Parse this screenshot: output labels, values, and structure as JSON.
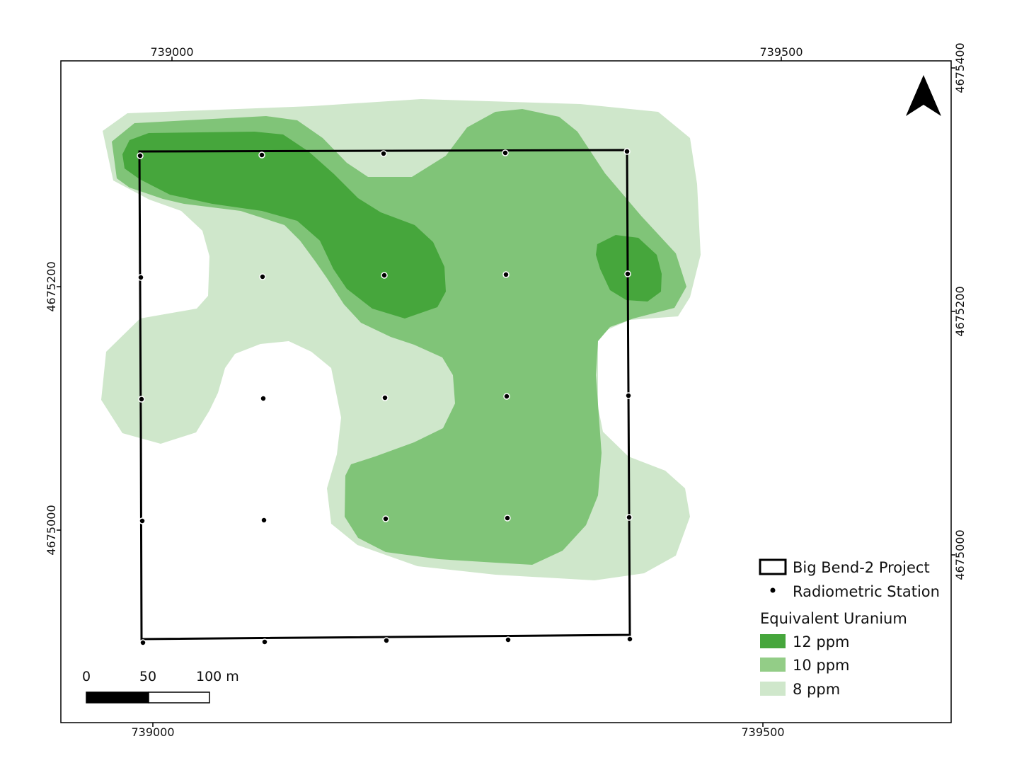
{
  "map": {
    "top_axis_ticks": [
      "739000",
      "739500"
    ],
    "bottom_axis_ticks": [
      "739000",
      "739500"
    ],
    "left_axis_ticks": [
      "4675200",
      "4675000"
    ],
    "right_axis_ticks": [
      "4675400",
      "4675200",
      "4675000"
    ],
    "north_arrow_icon": "north-arrow-icon"
  },
  "legend": {
    "project_label": "Big Bend-2 Project",
    "station_label": "Radiometric Station",
    "group_title": "Equivalent Uranium",
    "classes": [
      {
        "label": "12 ppm",
        "color": "#4aa83f"
      },
      {
        "label": "10 ppm",
        "color": "#93cd87"
      },
      {
        "label": "8 ppm",
        "color": "#cfe7cb"
      }
    ]
  },
  "scale_bar": {
    "labels": [
      "0",
      "50",
      "100 m"
    ]
  },
  "colors": {
    "ppm12": "#46a63c",
    "ppm10": "#80c478",
    "ppm8": "#cfe7cb",
    "boundary": "#000000"
  }
}
